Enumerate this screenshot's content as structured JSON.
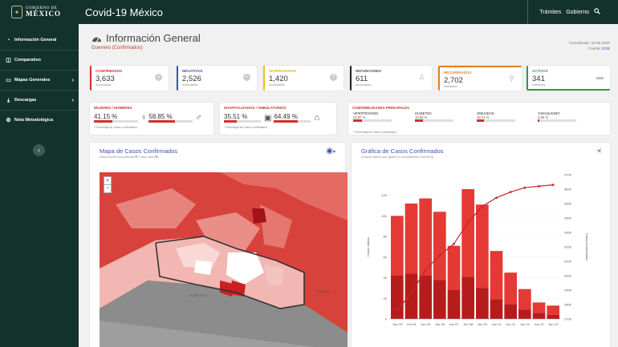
{
  "topbar": {
    "logo_line1": "GOBIERNO DE",
    "logo_line2": "MÉXICO",
    "app_title": "Covid-19 México",
    "nav": [
      "Trámites",
      "Gobierno"
    ],
    "bg_color": "#13322b"
  },
  "sidebar": {
    "items": [
      {
        "label": "Información General",
        "icon": "gauge-icon"
      },
      {
        "label": "Comparativo",
        "icon": "chart-icon"
      },
      {
        "label": "Mapas Generales",
        "icon": "monitor-icon"
      },
      {
        "label": "Descargas",
        "icon": "download-icon"
      },
      {
        "label": "Nota Metodológica",
        "icon": "gear-icon"
      }
    ]
  },
  "header": {
    "title": "Información General",
    "subtitle": "Guerrero (Confirmados)",
    "updated_label": "*Actualizado: 18-06-2020",
    "source_label": "Fuente:",
    "source_value": "DGE"
  },
  "stats": [
    {
      "label": "CONFIRMADOS",
      "value": "3,633",
      "sub": "acumulados",
      "color": "#d32f2f"
    },
    {
      "label": "NEGATIVOS",
      "value": "2,526",
      "sub": "acumulados",
      "color": "#3f51b5"
    },
    {
      "label": "SOSPECHOSOS",
      "value": "1,420",
      "sub": "acumulados",
      "color": "#f1c40f"
    },
    {
      "label": "DEFUNCIONES",
      "value": "611",
      "sub": "acumulados",
      "color": "#222222"
    },
    {
      "label": "RECUPERADOS",
      "value": "2,702",
      "sub": "estimados",
      "color": "#e67e22"
    },
    {
      "label": "ACTIVOS",
      "value": "341",
      "sub": "estimados",
      "color": "#2e9e4f"
    }
  ],
  "gender": {
    "label": "MUJERES / HOMBRES",
    "women_pct": "41.15 %",
    "men_pct": "58.85 %",
    "women_frac": 0.4115,
    "men_frac": 0.5885,
    "footnote": "* Porcentaje de Casos Confirmados"
  },
  "hospital": {
    "label": "HOSPITALIZADOS / AMBULATORIOS",
    "hosp_pct": "35.51 %",
    "amb_pct": "64.49 %",
    "hosp_frac": 0.3551,
    "amb_frac": 0.6449,
    "footnote": "* Porcentaje de Casos Confirmados"
  },
  "comorbidities": {
    "label": "COMORBILIDADES PRINCIPALES",
    "items": [
      {
        "name": "HIPERTENSION",
        "pct": "22.87 %",
        "frac": 0.2287
      },
      {
        "name": "DIABETES",
        "pct": "19.93 %",
        "frac": 0.1993
      },
      {
        "name": "OBESIDAD",
        "pct": "18.74 %",
        "frac": 0.1874
      },
      {
        "name": "TABAQUISMO",
        "pct": "4.90 %",
        "frac": 0.049
      }
    ],
    "footnote": "* Porcentaje de Casos Confirmados"
  },
  "map_panel": {
    "title": "Mapa de Casos Confirmados",
    "subtitle": "(Seleccione una entidad ✤ o una vista ✤)",
    "zoom_in": "+",
    "zoom_out": "−",
    "place_label_1": "ACAPULCO",
    "place_label_2": "OAXACA"
  },
  "chart_panel": {
    "title": "Gráfica de Casos Confirmados",
    "subtitle": "(Casos diarios por género y acumulados Guerrero)"
  },
  "chart_data": {
    "type": "bar",
    "categories": [
      "Jun 03",
      "Jun 04",
      "Jun 05",
      "Jun 06",
      "Jun 07",
      "Jun 08",
      "Jun 09",
      "Jun 10",
      "Jun 11",
      "Jun 12",
      "Jun 13",
      "Jun 14"
    ],
    "series": [
      {
        "name": "Mujeres",
        "values": [
          42,
          44,
          42,
          38,
          28,
          41,
          30,
          19,
          14,
          9,
          6,
          4
        ]
      },
      {
        "name": "Hombres",
        "values": [
          58,
          68,
          75,
          66,
          43,
          85,
          81,
          47,
          31,
          20,
          10,
          9
        ]
      },
      {
        "name": "Acumulados",
        "axis": "right",
        "values": [
          2760,
          2880,
          3040,
          3140,
          3220,
          3370,
          3480,
          3540,
          3580,
          3610,
          3620,
          3630
        ]
      }
    ],
    "ylabel": "Casos diarios",
    "y2label": "Casos Acumulados",
    "ylim": [
      0,
      140
    ],
    "yticks": [
      0,
      20,
      40,
      60,
      80,
      100,
      120
    ],
    "y2lim": [
      2700,
      3700
    ],
    "y2ticks": [
      2700,
      2800,
      2900,
      3000,
      3100,
      3200,
      3300,
      3400,
      3500,
      3600,
      3700
    ],
    "colors": {
      "mujeres": "#b71c1c",
      "hombres": "#e53935",
      "acumulados": "#c62828"
    }
  }
}
